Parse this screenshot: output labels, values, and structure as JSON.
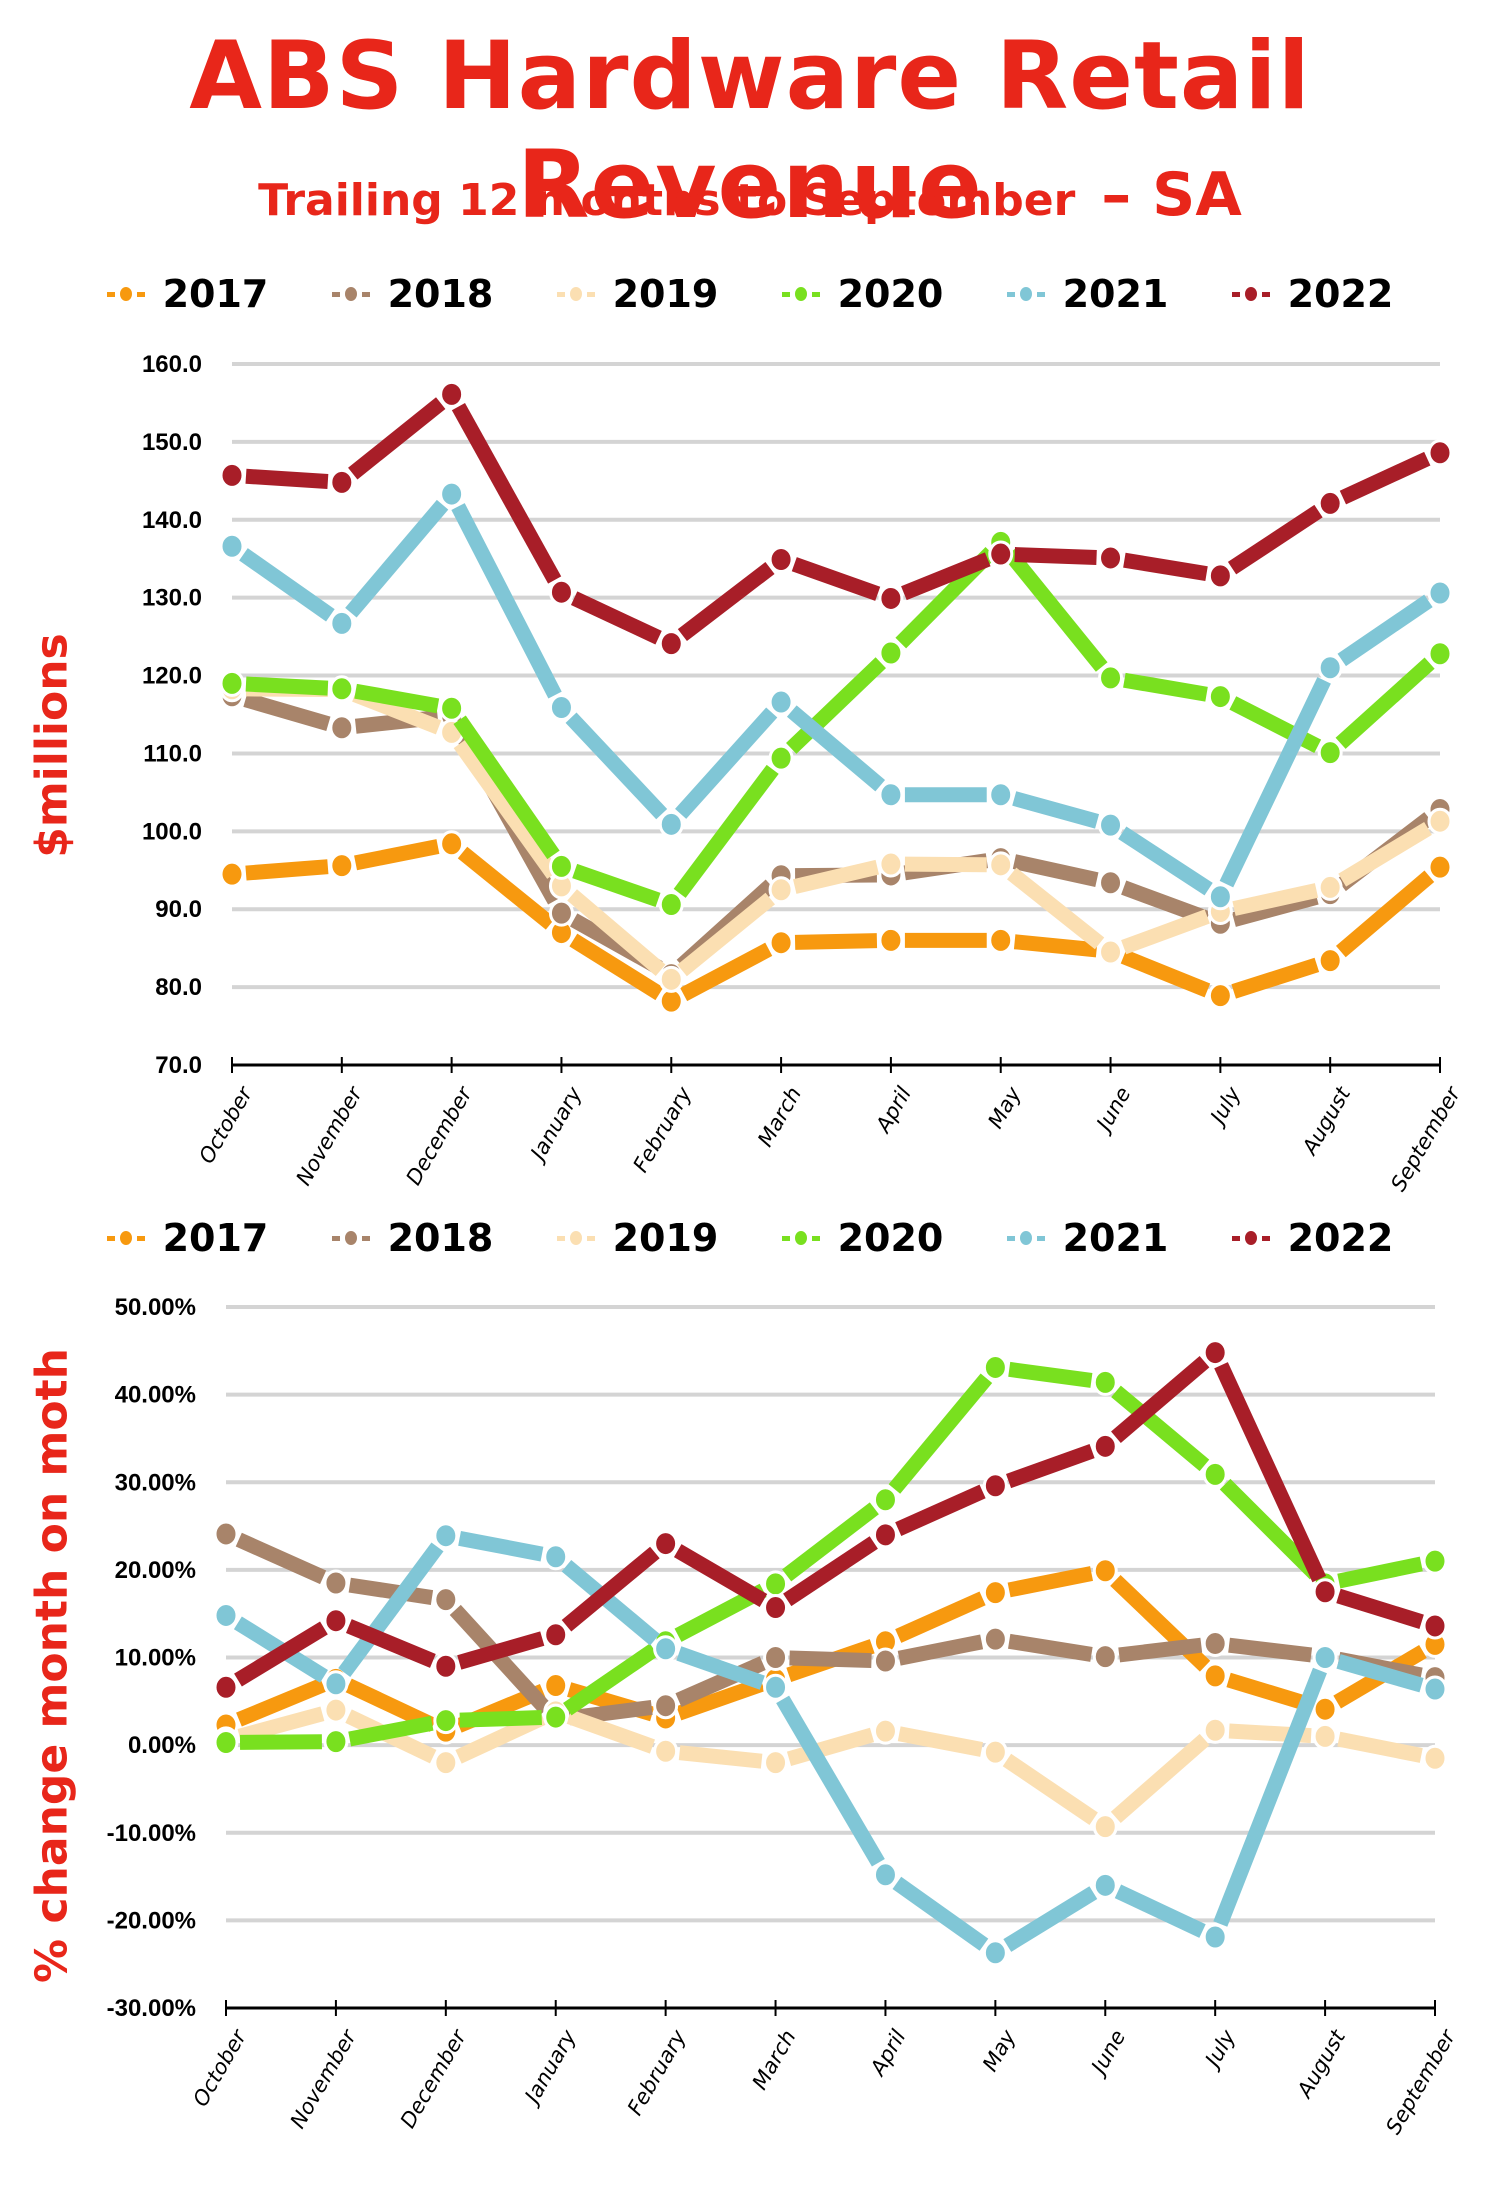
{
  "title": "ABS Hardware Retail Revenue",
  "subtitle": {
    "main": "Trailing 12 months to September",
    "region": "– SA"
  },
  "series_colors": {
    "2017": "#f7990f",
    "2018": "#a8846a",
    "2019": "#fbdfb2",
    "2020": "#79e01f",
    "2021": "#80c6d6",
    "2022": "#a81e28"
  },
  "text_accent": "#e8261a",
  "chart_data": [
    {
      "type": "line",
      "title": "ABS Hardware Retail Revenue – Trailing 12 months to September – SA",
      "xlabel": "",
      "ylabel": "$millions",
      "ylim": [
        70,
        160
      ],
      "yticks": [
        "160.0",
        "150.0",
        "140.0",
        "130.0",
        "120.0",
        "110.0",
        "100.0",
        "90.0",
        "80.0",
        "70.0"
      ],
      "ytick_values": [
        160,
        150,
        140,
        130,
        120,
        110,
        100,
        90,
        80,
        70
      ],
      "grid": true,
      "legend": "top",
      "categories": [
        "October",
        "November",
        "December",
        "January",
        "February",
        "March",
        "April",
        "May",
        "June",
        "July",
        "August",
        "September"
      ],
      "series": [
        {
          "name": "2017",
          "values": [
            94.5,
            95.6,
            98.4,
            87.0,
            78.2,
            85.7,
            86.0,
            86.0,
            84.6,
            78.9,
            83.4,
            95.4
          ]
        },
        {
          "name": "2018",
          "values": [
            117.4,
            113.3,
            114.8,
            89.5,
            81.6,
            94.3,
            94.4,
            96.5,
            93.4,
            88.2,
            92.0,
            102.8
          ]
        },
        {
          "name": "2019",
          "values": [
            118.3,
            118.2,
            112.7,
            93.0,
            81.0,
            92.5,
            95.8,
            95.7,
            84.5,
            89.7,
            92.8,
            101.3
          ]
        },
        {
          "name": "2020",
          "values": [
            119.0,
            118.3,
            115.8,
            95.5,
            90.6,
            109.4,
            122.9,
            137.1,
            119.7,
            117.3,
            110.1,
            122.8
          ]
        },
        {
          "name": "2021",
          "values": [
            136.6,
            126.7,
            143.3,
            115.9,
            100.9,
            116.6,
            104.7,
            104.7,
            100.8,
            91.6,
            121.0,
            130.6
          ]
        },
        {
          "name": "2022",
          "values": [
            145.7,
            144.8,
            156.1,
            130.7,
            124.1,
            134.9,
            129.9,
            135.6,
            135.1,
            132.8,
            142.1,
            148.6
          ]
        }
      ]
    },
    {
      "type": "line",
      "title": "",
      "xlabel": "",
      "ylabel": "% change month on moth",
      "ylim": [
        -30,
        50
      ],
      "yticks": [
        "50.00%",
        "40.00%",
        "30.00%",
        "20.00%",
        "10.00%",
        "0.00%",
        "-10.00%",
        "-20.00%",
        "-30.00%"
      ],
      "ytick_values": [
        50,
        40,
        30,
        20,
        10,
        0,
        -10,
        -20,
        -30
      ],
      "grid": true,
      "legend": "top",
      "categories": [
        "October",
        "November",
        "December",
        "January",
        "February",
        "March",
        "April",
        "May",
        "June",
        "July",
        "August",
        "September"
      ],
      "series": [
        {
          "name": "2017",
          "values": [
            2.3,
            7.5,
            1.6,
            6.8,
            3.1,
            7.5,
            11.8,
            17.4,
            19.9,
            7.9,
            4.1,
            11.5
          ]
        },
        {
          "name": "2018",
          "values": [
            24.1,
            18.5,
            16.6,
            2.9,
            4.5,
            10.0,
            9.6,
            12.1,
            10.1,
            11.6,
            10.1,
            7.7
          ]
        },
        {
          "name": "2019",
          "values": [
            0.6,
            4.0,
            -2.0,
            3.8,
            -0.7,
            -2.0,
            1.6,
            -0.8,
            -9.3,
            1.7,
            1.0,
            -1.5
          ]
        },
        {
          "name": "2020",
          "values": [
            0.3,
            0.4,
            2.8,
            3.2,
            11.8,
            18.4,
            28.0,
            43.1,
            41.4,
            30.9,
            18.4,
            21.0
          ]
        },
        {
          "name": "2021",
          "values": [
            14.8,
            7.0,
            23.9,
            21.5,
            11.0,
            6.6,
            -14.8,
            -23.7,
            -16.0,
            -21.9,
            10.0,
            6.4
          ]
        },
        {
          "name": "2022",
          "values": [
            6.6,
            14.2,
            9.0,
            12.6,
            23.0,
            15.7,
            24.0,
            29.6,
            34.1,
            44.8,
            17.5,
            13.6
          ]
        }
      ]
    }
  ]
}
